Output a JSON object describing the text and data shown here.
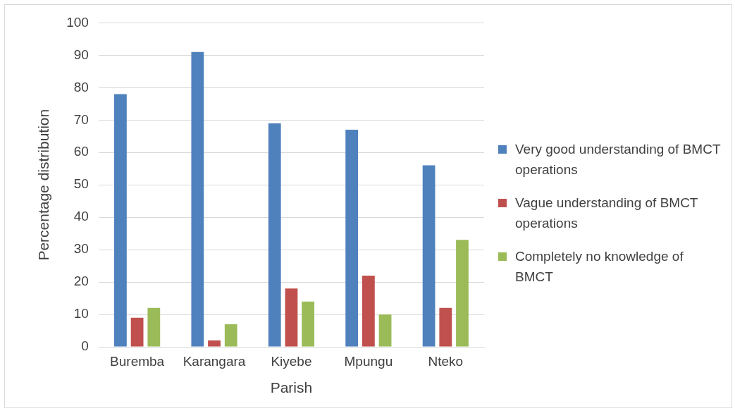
{
  "chart_data": {
    "type": "bar",
    "xlabel": "Parish",
    "ylabel": "Percentage distribution",
    "categories": [
      "Buremba",
      "Karangara",
      "Kiyebe",
      "Mpungu",
      "Nteko"
    ],
    "series": [
      {
        "name": "Very good understanding of BMCT operations",
        "color": "#4f81bd",
        "values": [
          78,
          91,
          69,
          67,
          56
        ]
      },
      {
        "name": "Vague understanding of BMCT operations",
        "color": "#c0504d",
        "values": [
          9,
          2,
          18,
          22,
          12
        ]
      },
      {
        "name": "Completely no knowledge of BMCT",
        "color": "#9bbb59",
        "values": [
          12,
          7,
          14,
          10,
          33
        ]
      }
    ],
    "ylim": [
      0,
      100
    ],
    "yticks": [
      0,
      10,
      20,
      30,
      40,
      50,
      60,
      70,
      80,
      90,
      100
    ],
    "grid": "y",
    "legend": "right"
  }
}
